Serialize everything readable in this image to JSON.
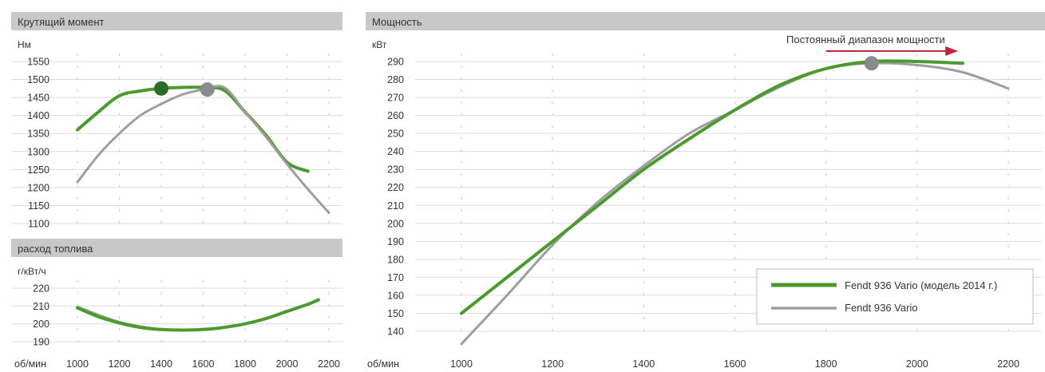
{
  "colors": {
    "green": "#4a9a2e",
    "gray": "#9e9e9e",
    "green_marker": "#2a6d2a",
    "gray_marker": "#8a8a8a",
    "arrow": "#c0243a",
    "header": "#c8c8c8"
  },
  "x_axis_label": "об/мин",
  "legend": [
    {
      "label": "Fendt 936 Vario (модель 2014 г.)",
      "color": "#4a9a2e"
    },
    {
      "label": "Fendt 936 Vario",
      "color": "#9e9e9e"
    }
  ],
  "annotation": {
    "text": "Постоянный диапазон мощности"
  },
  "chart_data": [
    {
      "type": "line",
      "title": "Крутящий момент",
      "ylabel": "Нм",
      "xlabel": "об/мин",
      "xlim": [
        1000,
        2200
      ],
      "ylim": [
        1100,
        1550
      ],
      "x_ticks": [
        1000,
        1200,
        1400,
        1600,
        1800,
        2000,
        2200
      ],
      "y_ticks": [
        1100,
        1150,
        1200,
        1250,
        1300,
        1350,
        1400,
        1450,
        1500,
        1550
      ],
      "series": [
        {
          "name": "Fendt 936 Vario (модель 2014 г.)",
          "color": "#4a9a2e",
          "width": 4,
          "x": [
            1000,
            1100,
            1200,
            1300,
            1400,
            1500,
            1600,
            1700,
            1800,
            1900,
            2000,
            2100
          ],
          "y": [
            1360,
            1410,
            1455,
            1468,
            1475,
            1478,
            1478,
            1470,
            1410,
            1345,
            1270,
            1245
          ]
        },
        {
          "name": "Fendt 936 Vario",
          "color": "#9e9e9e",
          "width": 3,
          "x": [
            1000,
            1100,
            1200,
            1300,
            1400,
            1500,
            1600,
            1700,
            1800,
            1900,
            2000,
            2100,
            2200
          ],
          "y": [
            1215,
            1290,
            1350,
            1400,
            1432,
            1458,
            1472,
            1478,
            1410,
            1340,
            1265,
            1195,
            1130
          ]
        }
      ],
      "markers": [
        {
          "x": 1400,
          "y": 1475,
          "color": "#2a6d2a"
        },
        {
          "x": 1620,
          "y": 1472,
          "color": "#8a8a8a"
        }
      ]
    },
    {
      "type": "line",
      "title": "расход топлива",
      "ylabel": "г/кВт/ч",
      "xlabel": "об/мин",
      "xlim": [
        1000,
        2200
      ],
      "ylim": [
        190,
        220
      ],
      "x_ticks": [
        1000,
        1200,
        1400,
        1600,
        1800,
        2000,
        2200
      ],
      "y_ticks": [
        190,
        200,
        210,
        220
      ],
      "series": [
        {
          "name": "Fendt 936 Vario",
          "color": "#9e9e9e",
          "width": 3,
          "x": [
            1000,
            1100,
            1200,
            1300,
            1400,
            1500,
            1600,
            1700,
            1800,
            1900,
            2000,
            2100,
            2150
          ],
          "y": [
            209.5,
            205,
            201,
            198.5,
            197,
            196.5,
            197,
            198,
            200,
            203,
            207,
            211,
            213
          ]
        },
        {
          "name": "Fendt 936 Vario (модель 2014 г.)",
          "color": "#4a9a2e",
          "width": 4,
          "x": [
            1000,
            1100,
            1200,
            1300,
            1400,
            1500,
            1600,
            1700,
            1800,
            1900,
            2000,
            2100,
            2150
          ],
          "y": [
            209,
            204,
            200.5,
            198,
            196.8,
            196.5,
            196.8,
            198,
            200,
            203,
            207,
            211,
            213.5
          ]
        }
      ],
      "markers": []
    },
    {
      "type": "line",
      "title": "Мощность",
      "ylabel": "кВт",
      "xlabel": "об/мин",
      "xlim": [
        1000,
        2200
      ],
      "ylim": [
        130,
        295
      ],
      "x_ticks": [
        1000,
        1200,
        1400,
        1600,
        1800,
        2000,
        2200
      ],
      "y_ticks": [
        140,
        150,
        160,
        170,
        180,
        190,
        200,
        210,
        220,
        230,
        240,
        250,
        260,
        270,
        280,
        290
      ],
      "series": [
        {
          "name": "Fendt 936 Vario",
          "color": "#9e9e9e",
          "width": 3,
          "x": [
            1000,
            1100,
            1200,
            1300,
            1400,
            1500,
            1600,
            1700,
            1800,
            1900,
            2000,
            2100,
            2200
          ],
          "y": [
            133,
            160,
            188,
            212,
            232,
            250,
            263,
            276,
            286,
            289,
            288,
            284,
            275
          ]
        },
        {
          "name": "Fendt 936 Vario (модель 2014 г.)",
          "color": "#4a9a2e",
          "width": 4,
          "x": [
            1000,
            1100,
            1200,
            1300,
            1400,
            1500,
            1600,
            1700,
            1800,
            1900,
            2000,
            2100
          ],
          "y": [
            150,
            170,
            190,
            210,
            230,
            247,
            263,
            277,
            286,
            290,
            290,
            289
          ]
        }
      ],
      "markers": [
        {
          "x": 1900,
          "y": 289,
          "color": "#8a8a8a"
        }
      ],
      "annotation_range": [
        1800,
        2090
      ]
    }
  ]
}
